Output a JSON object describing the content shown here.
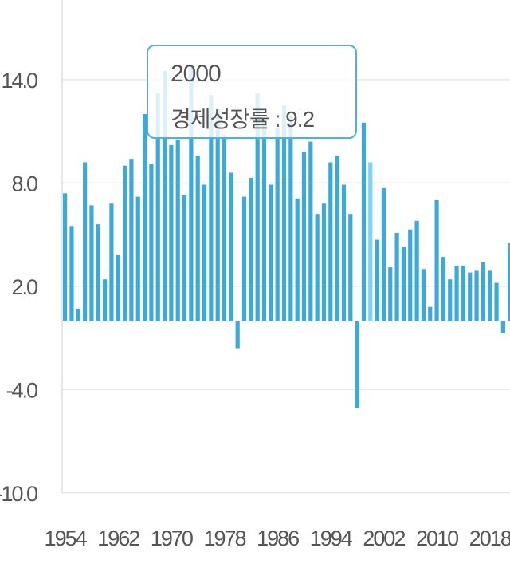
{
  "chart_data": {
    "type": "bar",
    "title": "",
    "xlabel": "",
    "ylabel": "",
    "ylim": [
      -10,
      18.2
    ],
    "yticks": [
      "14.0",
      "8.0",
      "2.0",
      "-4.0",
      "-10.0"
    ],
    "ytick_values": [
      14,
      8,
      2,
      -4,
      -10
    ],
    "xtick_labels": [
      "1954",
      "1962",
      "1970",
      "1978",
      "1986",
      "1994",
      "2002",
      "2010",
      "2018"
    ],
    "categories": [
      "1954",
      "1955",
      "1956",
      "1957",
      "1958",
      "1959",
      "1960",
      "1961",
      "1962",
      "1963",
      "1964",
      "1965",
      "1966",
      "1967",
      "1968",
      "1969",
      "1970",
      "1971",
      "1972",
      "1973",
      "1974",
      "1975",
      "1976",
      "1977",
      "1978",
      "1979",
      "1980",
      "1981",
      "1982",
      "1983",
      "1984",
      "1985",
      "1986",
      "1987",
      "1988",
      "1989",
      "1990",
      "1991",
      "1992",
      "1993",
      "1994",
      "1995",
      "1996",
      "1997",
      "1998",
      "1999",
      "2000",
      "2001",
      "2002",
      "2003",
      "2004",
      "2005",
      "2006",
      "2007",
      "2008",
      "2009",
      "2010",
      "2011",
      "2012",
      "2013",
      "2014",
      "2015",
      "2016",
      "2017",
      "2018",
      "2019",
      "2020",
      "2021"
    ],
    "series": [
      {
        "values": [
          7.4,
          5.5,
          0.7,
          9.2,
          6.7,
          5.6,
          2.4,
          6.8,
          3.8,
          9.0,
          9.4,
          7.2,
          12.0,
          9.1,
          13.2,
          14.5,
          10.2,
          10.5,
          7.3,
          14.8,
          9.6,
          7.9,
          13.1,
          12.3,
          10.8,
          8.6,
          -1.6,
          7.2,
          8.3,
          13.2,
          11.6,
          7.9,
          11.2,
          12.5,
          11.9,
          7.1,
          9.8,
          10.4,
          6.2,
          6.8,
          9.2,
          9.6,
          7.9,
          6.2,
          -5.1,
          11.5,
          9.2,
          4.7,
          7.7,
          3.1,
          5.1,
          4.3,
          5.3,
          5.8,
          3.0,
          0.8,
          7.0,
          3.7,
          2.4,
          3.2,
          3.2,
          2.8,
          2.9,
          3.4,
          2.9,
          2.2,
          -0.7,
          4.5
        ]
      }
    ],
    "highlight_index": 46,
    "colors": {
      "bar": "#3ba9d9",
      "highlight": "#7fd2f2",
      "grid": "#e8e8e8",
      "axis": "#dddddd",
      "text": "#555555"
    },
    "grid": true,
    "legend": "none"
  },
  "tooltip": {
    "year": "2000",
    "label": "경제성장률",
    "separator": " : ",
    "value": "9.2",
    "border_color": "#4fb3d6"
  }
}
